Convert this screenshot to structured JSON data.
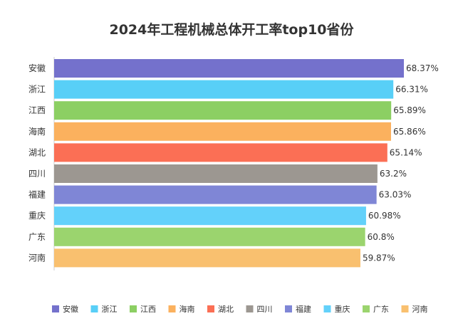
{
  "chart_data": {
    "type": "bar",
    "orientation": "horizontal",
    "title": "2024年工程机械总体开工率top10省份",
    "categories": [
      "安徽",
      "浙江",
      "江西",
      "海南",
      "湖北",
      "四川",
      "福建",
      "重庆",
      "广东",
      "河南"
    ],
    "values": [
      68.37,
      66.31,
      65.89,
      65.86,
      65.14,
      63.2,
      63.03,
      60.98,
      60.8,
      59.87
    ],
    "value_labels": [
      "68.37%",
      "66.31%",
      "65.89%",
      "65.86%",
      "65.14%",
      "63.2%",
      "63.03%",
      "60.98%",
      "60.8%",
      "59.87%"
    ],
    "colors": [
      "#7471cc",
      "#58cff7",
      "#8ccf63",
      "#fbb15e",
      "#fb6f55",
      "#9c9791",
      "#7f86d6",
      "#63d1fa",
      "#9bd46e",
      "#f9c06f"
    ],
    "unit": "%",
    "xlim": [
      0,
      68.37
    ],
    "xlabel": "",
    "ylabel": "",
    "grid": false,
    "legend_position": "bottom"
  }
}
